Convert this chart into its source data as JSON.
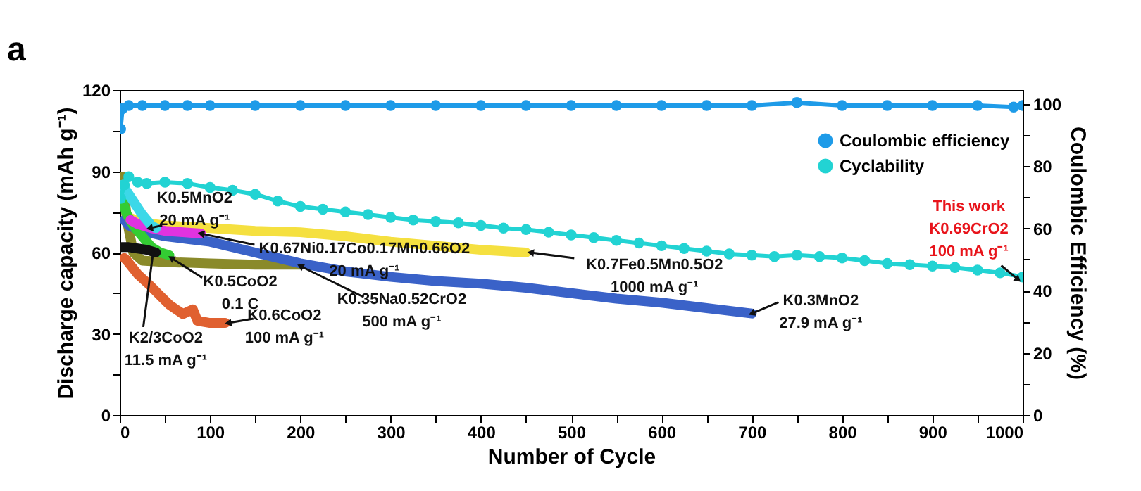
{
  "chart_data": {
    "type": "line",
    "title": "a",
    "xlabel": "Number of Cycle",
    "ylabel": "Discharge capacity (mAh g⁻¹)",
    "y2label": "Coulombic Efficiency (%)",
    "xlim": [
      0,
      1000
    ],
    "xticks": [
      0,
      {
        "value": 50,
        "label": null
      },
      100,
      {
        "value": 150,
        "label": null
      },
      200,
      {
        "value": 250,
        "label": null
      },
      300,
      {
        "value": 350,
        "label": null
      },
      400,
      {
        "value": 450,
        "label": null
      },
      500,
      {
        "value": 550,
        "label": null
      },
      600,
      {
        "value": 650,
        "label": null
      },
      700,
      {
        "value": 750,
        "label": null
      },
      800,
      {
        "value": 850,
        "label": null
      },
      900,
      {
        "value": 950,
        "label": null
      },
      1000
    ],
    "ylim": [
      0,
      120
    ],
    "yticks": [
      0,
      {
        "value": 15,
        "label": null
      },
      30,
      {
        "value": 45,
        "label": null
      },
      60,
      {
        "value": 75,
        "label": null
      },
      90,
      {
        "value": 105,
        "label": null
      },
      120
    ],
    "y2lim": [
      0,
      104.5
    ],
    "y2ticks": [
      0,
      {
        "value": 10,
        "label": null
      },
      20,
      {
        "value": 30,
        "label": null
      },
      40,
      {
        "value": 50,
        "label": null
      },
      60,
      {
        "value": 70,
        "label": null
      },
      80,
      {
        "value": 90,
        "label": null
      },
      100
    ],
    "grid": false,
    "legend": "top right",
    "line_style": "solid",
    "series": [
      {
        "name": "Coulombic efficiency",
        "color": "#1e9be8",
        "axis": "y2",
        "marker": "circle",
        "x": [
          1,
          3,
          10,
          25,
          50,
          75,
          100,
          150,
          200,
          250,
          300,
          350,
          400,
          450,
          500,
          550,
          600,
          650,
          700,
          750,
          800,
          850,
          900,
          950,
          990,
          1000
        ],
        "values": [
          92,
          98.5,
          99.5,
          99.5,
          99.5,
          99.5,
          99.5,
          99.5,
          99.5,
          99.5,
          99.5,
          99.5,
          99.5,
          99.5,
          99.5,
          99.5,
          99.5,
          99.5,
          99.5,
          100.5,
          99.5,
          99.5,
          99.5,
          99.5,
          99,
          99.5
        ]
      },
      {
        "color": "#8a8a2a",
        "marker": "none",
        "x": [
          3,
          8,
          15,
          25,
          50,
          100,
          150,
          200
        ],
        "values": [
          88,
          72,
          60,
          57,
          56.5,
          56,
          55.5,
          55.5
        ]
      },
      {
        "color": "#f5e040",
        "marker": "none",
        "x": [
          10,
          25,
          50,
          100,
          150,
          200,
          250,
          300,
          350,
          400,
          450
        ],
        "values": [
          73,
          71,
          70,
          69,
          68,
          67.5,
          66,
          64,
          62.5,
          61,
          60
        ]
      },
      {
        "color": "#3a62c8",
        "marker": "none",
        "x": [
          5,
          10,
          25,
          50,
          75,
          100,
          150,
          200,
          250,
          300,
          350,
          400,
          450,
          500,
          550,
          600,
          650,
          700
        ],
        "values": [
          72,
          70,
          68,
          66,
          65,
          64,
          60,
          56,
          53,
          51,
          49.5,
          48.5,
          47,
          45,
          43,
          41.5,
          39.5,
          37.5
        ]
      },
      {
        "color": "#33cc33",
        "marker": "none",
        "x": [
          2,
          8,
          15,
          25,
          35,
          45,
          55
        ],
        "values": [
          80,
          74,
          70,
          66,
          62,
          60,
          59
        ]
      },
      {
        "color": "#e033e0",
        "marker": "none",
        "x": [
          12,
          20,
          35,
          50,
          70,
          90
        ],
        "values": [
          72,
          70.5,
          69,
          68,
          67.5,
          67
        ]
      },
      {
        "color": "#3cd8e8",
        "marker": "none",
        "x": [
          3,
          15,
          25,
          35,
          40
        ],
        "values": [
          85,
          79,
          74,
          70,
          69
        ]
      },
      {
        "color": "#e06030",
        "marker": "none",
        "x": [
          5,
          8,
          20,
          34,
          45,
          55,
          70,
          81,
          86,
          100,
          117
        ],
        "values": [
          58,
          57,
          52,
          47.7,
          44,
          40.7,
          37.3,
          39,
          34.8,
          34,
          34
        ]
      },
      {
        "color": "#111111",
        "marker": "none",
        "x": [
          2,
          10,
          20,
          30,
          40
        ],
        "values": [
          62,
          62,
          61.5,
          61,
          60
        ]
      },
      {
        "name": "Cyclability",
        "color": "#22d3d3",
        "marker": "circle",
        "x": [
          1,
          5,
          10,
          20,
          30,
          50,
          75,
          100,
          125,
          150,
          175,
          200,
          225,
          250,
          275,
          300,
          325,
          350,
          375,
          400,
          425,
          450,
          475,
          500,
          525,
          550,
          575,
          600,
          625,
          650,
          675,
          700,
          725,
          750,
          775,
          800,
          825,
          850,
          875,
          900,
          925,
          950,
          975,
          1000
        ],
        "values": [
          80,
          85,
          88,
          86,
          85.5,
          86,
          85.5,
          84,
          83,
          81.5,
          79,
          77,
          76,
          75,
          74,
          73,
          72,
          71.5,
          71,
          70,
          69,
          68.5,
          67.5,
          66.5,
          65.5,
          64.5,
          63.5,
          62.5,
          61.5,
          60.5,
          59.5,
          59,
          58.5,
          59,
          58.5,
          58,
          57,
          56,
          55.5,
          55,
          54.5,
          53.5,
          52.5,
          51
        ]
      }
    ],
    "annotations": [
      {
        "text": "K0.5MnO2\n20 mA g⁻¹",
        "x": 33,
        "y": 69
      },
      {
        "text": "K0.67Ni0.17Co0.17Mn0.66O2\n20 mA g⁻¹",
        "x": 90,
        "y": 67
      },
      {
        "text": "K0.7Fe0.5Mn0.5O2\n1000 mA g⁻¹",
        "x": 455,
        "y": 60
      },
      {
        "text": "K0.3MnO2\n27.9 mA g⁻¹",
        "x": 700,
        "y": 37.5
      },
      {
        "text": "K0.35Na0.52CrO2\n500 mA g⁻¹",
        "x": 200,
        "y": 55
      },
      {
        "text": "K0.5CoO2\n0.1 C",
        "x": 57,
        "y": 58
      },
      {
        "text": "K0.6CoO2\n100 mA g⁻¹",
        "x": 120,
        "y": 34
      },
      {
        "text": "K2/3CoO2\n11.5 mA g⁻¹",
        "x": 37,
        "y": 60
      },
      {
        "text": "This work\nK0.69CrO2\n\n100 mA g⁻¹",
        "x": 995,
        "y": 50
      }
    ]
  }
}
